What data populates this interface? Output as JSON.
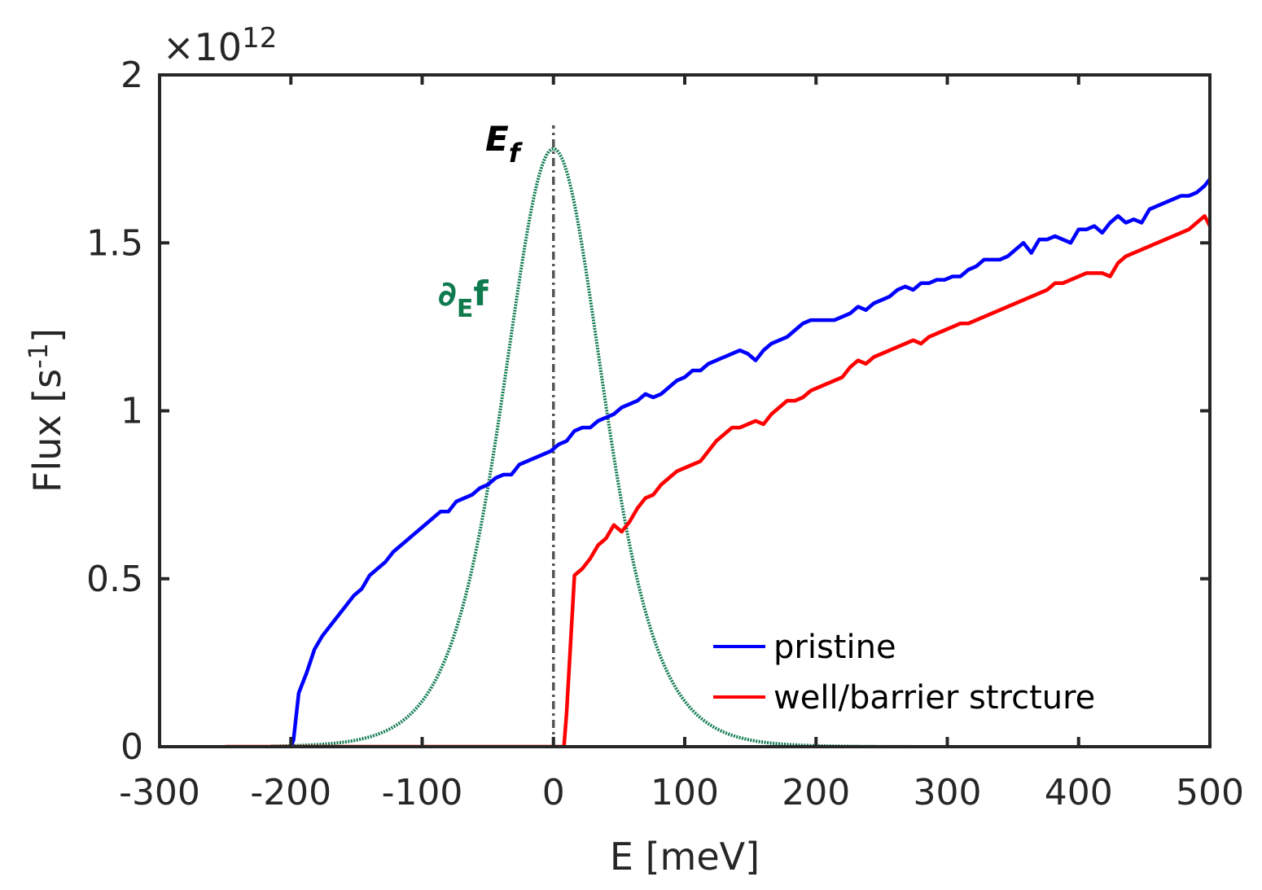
{
  "chart_data": {
    "type": "line",
    "xlabel": "E [meV]",
    "ylabel": "Flux [s",
    "ylabel_sup": "-1",
    "ylabel_close": "]",
    "xlim": [
      -300,
      500
    ],
    "ylim": [
      0,
      2
    ],
    "y_exponent_prefix": "×10",
    "y_exponent_power": "12",
    "xticks": [
      -300,
      -200,
      -100,
      0,
      100,
      200,
      300,
      400,
      500
    ],
    "xtick_labels": [
      "-300",
      "-200",
      "-100",
      "0",
      "100",
      "200",
      "300",
      "400",
      "500"
    ],
    "yticks": [
      0,
      0.5,
      1,
      1.5,
      2
    ],
    "ytick_labels": [
      "0",
      "0.5",
      "1",
      "1.5",
      "2"
    ],
    "legend_position": "bottom-right",
    "grid": false,
    "series": [
      {
        "name": "pristine",
        "color": "#0000ff",
        "in_legend": true,
        "x": [
          -200,
          -198,
          -194,
          -188,
          -182,
          -176,
          -170,
          -164,
          -158,
          -152,
          -146,
          -140,
          -134,
          -128,
          -122,
          -116,
          -110,
          -104,
          -98,
          -92,
          -86,
          -80,
          -74,
          -68,
          -62,
          -56,
          -50,
          -44,
          -38,
          -32,
          -26,
          -20,
          -14,
          -8,
          -2,
          4,
          10,
          16,
          22,
          28,
          34,
          40,
          46,
          52,
          58,
          64,
          70,
          76,
          82,
          88,
          94,
          100,
          106,
          112,
          118,
          124,
          130,
          136,
          142,
          148,
          154,
          160,
          166,
          172,
          178,
          184,
          190,
          196,
          202,
          208,
          214,
          220,
          226,
          232,
          238,
          244,
          250,
          256,
          262,
          268,
          274,
          280,
          286,
          292,
          298,
          304,
          310,
          316,
          322,
          328,
          334,
          340,
          346,
          352,
          358,
          364,
          370,
          376,
          382,
          388,
          394,
          400,
          406,
          412,
          418,
          424,
          430,
          436,
          442,
          448,
          454,
          460,
          466,
          472,
          478,
          484,
          490,
          496,
          500
        ],
        "y": [
          0.0,
          0.02,
          0.16,
          0.22,
          0.29,
          0.33,
          0.36,
          0.39,
          0.42,
          0.45,
          0.47,
          0.51,
          0.53,
          0.55,
          0.58,
          0.6,
          0.62,
          0.64,
          0.66,
          0.68,
          0.7,
          0.7,
          0.73,
          0.74,
          0.75,
          0.77,
          0.78,
          0.8,
          0.81,
          0.81,
          0.84,
          0.85,
          0.86,
          0.87,
          0.88,
          0.9,
          0.91,
          0.94,
          0.95,
          0.95,
          0.97,
          0.98,
          0.99,
          1.01,
          1.02,
          1.03,
          1.05,
          1.04,
          1.05,
          1.07,
          1.09,
          1.1,
          1.12,
          1.12,
          1.14,
          1.15,
          1.16,
          1.17,
          1.18,
          1.17,
          1.15,
          1.18,
          1.2,
          1.21,
          1.22,
          1.24,
          1.26,
          1.27,
          1.27,
          1.27,
          1.27,
          1.28,
          1.29,
          1.31,
          1.3,
          1.32,
          1.33,
          1.34,
          1.36,
          1.37,
          1.36,
          1.38,
          1.38,
          1.39,
          1.39,
          1.4,
          1.4,
          1.42,
          1.43,
          1.45,
          1.45,
          1.45,
          1.46,
          1.48,
          1.5,
          1.47,
          1.51,
          1.51,
          1.52,
          1.51,
          1.5,
          1.54,
          1.54,
          1.55,
          1.53,
          1.56,
          1.58,
          1.56,
          1.57,
          1.56,
          1.6,
          1.61,
          1.62,
          1.63,
          1.64,
          1.64,
          1.65,
          1.67,
          1.69
        ]
      },
      {
        "name": "well/barrier strcture",
        "color": "#ff0000",
        "in_legend": true,
        "x": [
          -250,
          -150,
          -50,
          0,
          8,
          10,
          16,
          22,
          28,
          34,
          40,
          46,
          52,
          58,
          64,
          70,
          76,
          82,
          88,
          94,
          100,
          106,
          112,
          118,
          124,
          130,
          136,
          142,
          148,
          154,
          160,
          166,
          172,
          178,
          184,
          190,
          196,
          202,
          208,
          214,
          220,
          226,
          232,
          238,
          244,
          250,
          256,
          262,
          268,
          274,
          280,
          286,
          292,
          298,
          304,
          310,
          316,
          322,
          328,
          334,
          340,
          346,
          352,
          358,
          364,
          370,
          376,
          382,
          388,
          394,
          400,
          406,
          412,
          418,
          424,
          430,
          436,
          442,
          448,
          454,
          460,
          466,
          472,
          478,
          484,
          490,
          496,
          500
        ],
        "y": [
          0,
          0,
          0,
          0,
          0,
          0.1,
          0.51,
          0.53,
          0.56,
          0.6,
          0.62,
          0.66,
          0.64,
          0.67,
          0.71,
          0.74,
          0.75,
          0.78,
          0.8,
          0.82,
          0.83,
          0.84,
          0.85,
          0.88,
          0.91,
          0.93,
          0.95,
          0.95,
          0.96,
          0.97,
          0.96,
          0.99,
          1.01,
          1.03,
          1.03,
          1.04,
          1.06,
          1.07,
          1.08,
          1.09,
          1.1,
          1.13,
          1.15,
          1.14,
          1.16,
          1.17,
          1.18,
          1.19,
          1.2,
          1.21,
          1.2,
          1.22,
          1.23,
          1.24,
          1.25,
          1.26,
          1.26,
          1.27,
          1.28,
          1.29,
          1.3,
          1.31,
          1.32,
          1.33,
          1.34,
          1.35,
          1.36,
          1.38,
          1.38,
          1.39,
          1.4,
          1.41,
          1.41,
          1.41,
          1.4,
          1.44,
          1.46,
          1.47,
          1.48,
          1.49,
          1.5,
          1.51,
          1.52,
          1.53,
          1.54,
          1.56,
          1.58,
          1.55
        ]
      },
      {
        "name": "∂Ef",
        "color": "#0e7a4e",
        "in_legend": false,
        "style": "dotted",
        "function": "derivative of Fermi-Dirac, peak 1.78 at E=0, kT=25.5 meV",
        "peak": 1.78,
        "center": 0,
        "kT": 25.5,
        "x_range": [
          -215,
          440
        ]
      }
    ],
    "vline": {
      "x": 0,
      "color": "#555555",
      "style": "dash-dot",
      "y_top": 1.85
    },
    "annotations": [
      {
        "text": "E",
        "sub": "f",
        "color": "#000000"
      },
      {
        "text": "∂",
        "sub": "E",
        "suffix": "f",
        "color": "#0e7a4e"
      }
    ]
  },
  "colors": {
    "axis": "#262626",
    "text": "#262626",
    "background": "#ffffff"
  }
}
